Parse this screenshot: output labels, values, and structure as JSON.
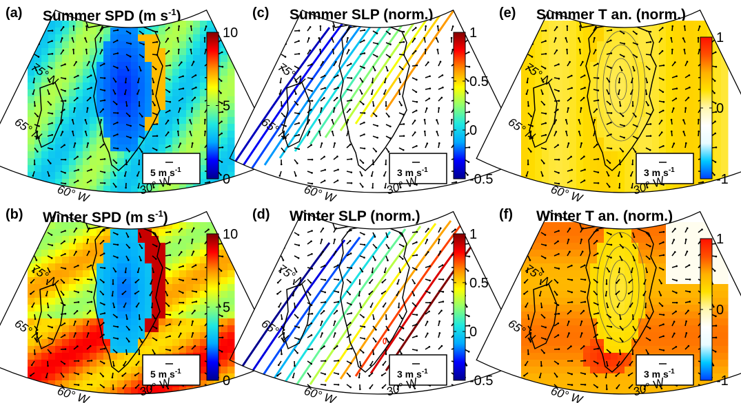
{
  "colors": {
    "jet_stops": [
      "#00008f",
      "#0000ff",
      "#00aaff",
      "#20e8e0",
      "#90ff70",
      "#ffff00",
      "#ff9000",
      "#ff0000",
      "#800000"
    ],
    "anomaly_stops": [
      "#0040ff",
      "#00c8ff",
      "#e8fbff",
      "#ffffff",
      "#fff7b0",
      "#ffe000",
      "#ffb000",
      "#ff5000",
      "#ff1000"
    ],
    "coast": "#000000"
  },
  "labels": {
    "lat75": "75° N",
    "lat65": "65° N",
    "lon60": "60° W",
    "lon30": "30° W"
  },
  "panels": [
    {
      "id": "a",
      "letter": "(a)",
      "title_main": "Summer SPD (m s",
      "title_sup": "-1",
      "title_end": ")",
      "scale": "5 m s",
      "scale_sup": "-1",
      "cmap": "jet",
      "ticks": [
        "10",
        "5",
        "0"
      ],
      "field": "spd_summer"
    },
    {
      "id": "c",
      "letter": "(c)",
      "title_main": "Summer SLP (norm.)",
      "title_sup": "",
      "title_end": "",
      "scale": "3 m s",
      "scale_sup": "-1",
      "cmap": "jet",
      "ticks": [
        "1",
        "0.5",
        "0",
        "-0.5"
      ],
      "field": "slp_summer"
    },
    {
      "id": "e",
      "letter": "(e)",
      "title_main": "Summer T an. (norm.)",
      "title_sup": "",
      "title_end": "",
      "scale": "3 m s",
      "scale_sup": "-1",
      "cmap": "anomaly",
      "ticks": [
        "1",
        "0",
        "-1"
      ],
      "field": "t_summer"
    },
    {
      "id": "b",
      "letter": "(b)",
      "title_main": "Winter SPD (m s",
      "title_sup": "-1",
      "title_end": ")",
      "scale": "5 m s",
      "scale_sup": "-1",
      "cmap": "jet",
      "ticks": [
        "10",
        "5",
        "0"
      ],
      "field": "spd_winter"
    },
    {
      "id": "d",
      "letter": "(d)",
      "title_main": "Winter SLP (norm.)",
      "title_sup": "",
      "title_end": "",
      "scale": "3 m s",
      "scale_sup": "-1",
      "cmap": "jet",
      "ticks": [
        "1",
        "0.5",
        "0",
        "-0.5"
      ],
      "field": "slp_winter"
    },
    {
      "id": "f",
      "letter": "(f)",
      "title_main": "Winter T an. (norm.)",
      "title_sup": "",
      "title_end": "",
      "scale": "3 m s",
      "scale_sup": "-1",
      "cmap": "anomaly",
      "ticks": [
        "1",
        "0",
        "-1"
      ],
      "field": "t_winter"
    }
  ],
  "chart_data": [
    {
      "type": "heatmap",
      "panel": "(a)",
      "title": "Summer SPD (m s-1)",
      "colorbar_range": [
        0,
        10
      ],
      "colorbar_ticks": [
        0,
        5,
        10
      ],
      "vector_scale": "5 m s-1",
      "lat_labels": [
        "65° N",
        "75° N"
      ],
      "lon_labels": [
        "60° W",
        "30° W"
      ]
    },
    {
      "type": "heatmap",
      "panel": "(b)",
      "title": "Winter SPD (m s-1)",
      "colorbar_range": [
        0,
        10
      ],
      "colorbar_ticks": [
        0,
        5,
        10
      ],
      "vector_scale": "5 m s-1",
      "lat_labels": [
        "65° N",
        "75° N"
      ],
      "lon_labels": [
        "60° W",
        "30° W"
      ]
    },
    {
      "type": "heatmap",
      "panel": "(c)",
      "title": "Summer SLP (norm.)",
      "colorbar_range": [
        -0.5,
        1
      ],
      "colorbar_ticks": [
        -0.5,
        0,
        0.5,
        1
      ],
      "vector_scale": "3 m s-1",
      "lat_labels": [
        "65° N",
        "75° N"
      ],
      "lon_labels": [
        "60° W",
        "30° W"
      ]
    },
    {
      "type": "heatmap",
      "panel": "(d)",
      "title": "Winter SLP (norm.)",
      "colorbar_range": [
        -0.5,
        1
      ],
      "colorbar_ticks": [
        -0.5,
        0,
        0.5,
        1
      ],
      "vector_scale": "3 m s-1",
      "lat_labels": [
        "65° N",
        "75° N"
      ],
      "lon_labels": [
        "60° W",
        "30° W"
      ]
    },
    {
      "type": "heatmap",
      "panel": "(e)",
      "title": "Summer T an. (norm.)",
      "colorbar_range": [
        -1,
        1
      ],
      "colorbar_ticks": [
        -1,
        0,
        1
      ],
      "vector_scale": "3 m s-1",
      "lat_labels": [
        "65° N",
        "75° N"
      ],
      "lon_labels": [
        "60° W",
        "30° W"
      ]
    },
    {
      "type": "heatmap",
      "panel": "(f)",
      "title": "Winter T an. (norm.)",
      "colorbar_range": [
        -1,
        1
      ],
      "colorbar_ticks": [
        -1,
        0,
        1
      ],
      "vector_scale": "3 m s-1",
      "lat_labels": [
        "65° N",
        "75° N"
      ],
      "lon_labels": [
        "60° W",
        "30° W"
      ]
    }
  ]
}
